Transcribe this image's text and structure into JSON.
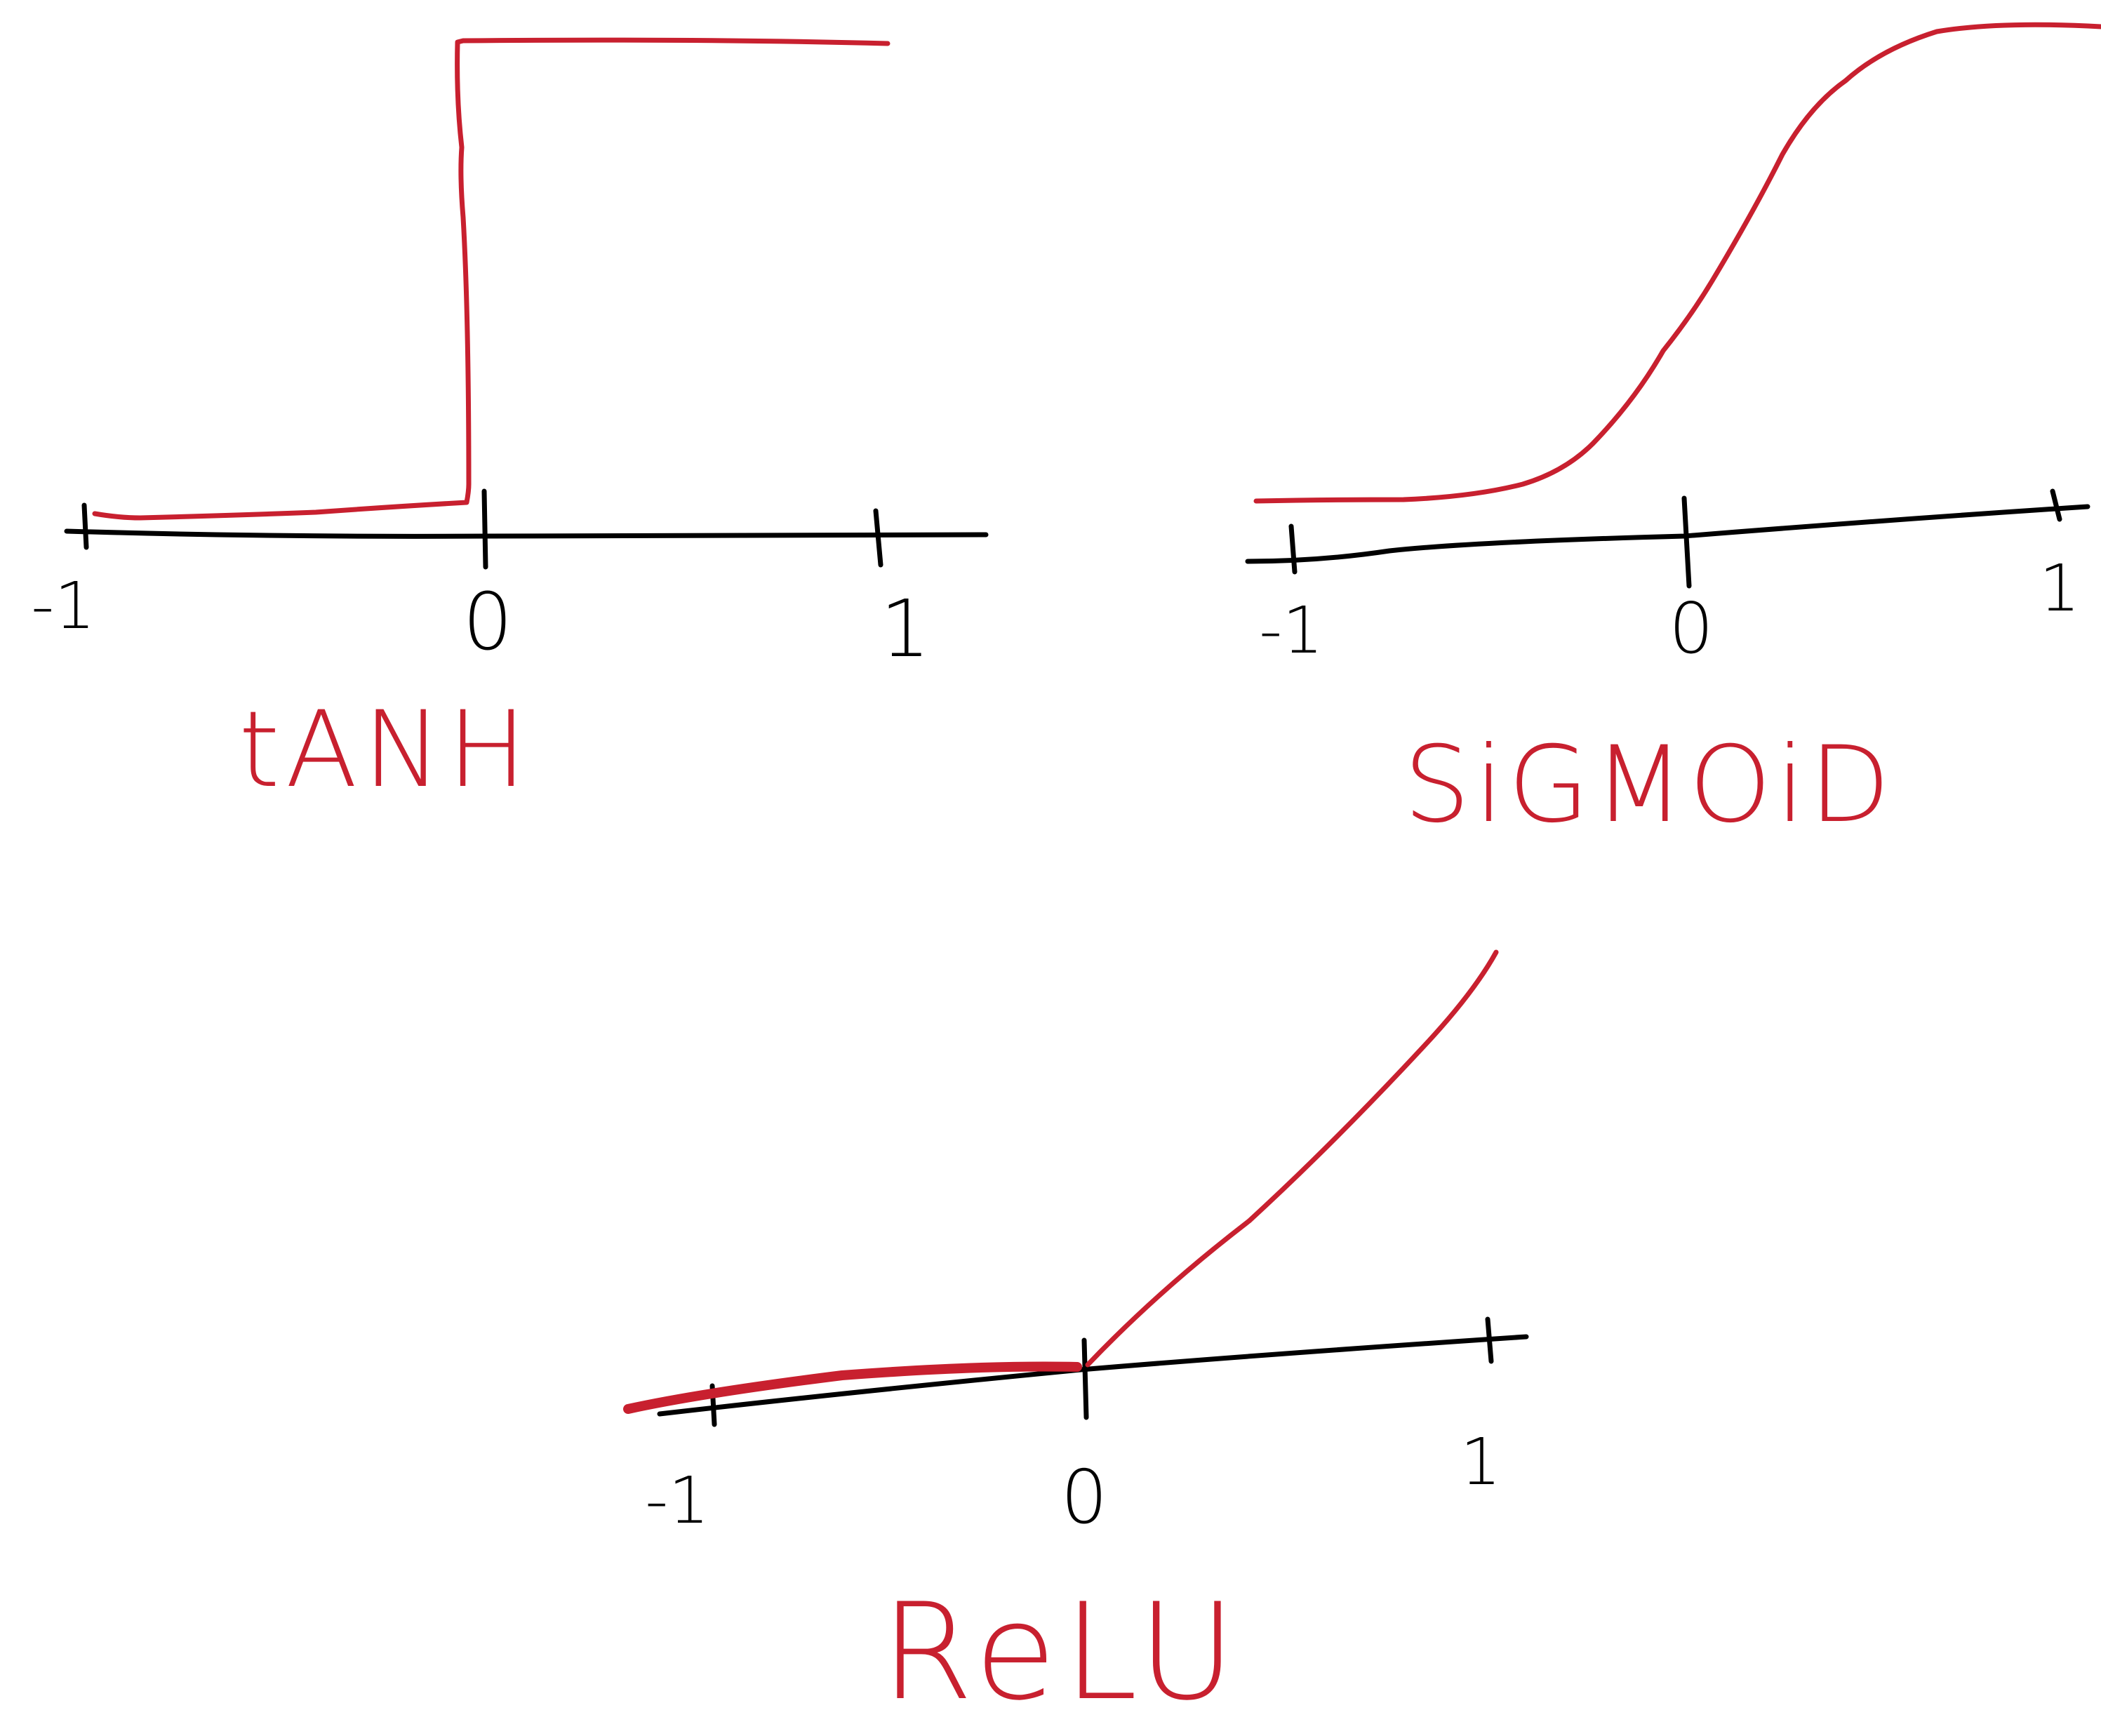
{
  "colors": {
    "axis": "#000000",
    "curve": "#c8202f",
    "background": "#ffffff"
  },
  "plots": [
    {
      "id": "tanh",
      "title": "tANH",
      "tick_labels": [
        "-1",
        "0",
        "1"
      ]
    },
    {
      "id": "sigmoid",
      "title": "SiGMOiD",
      "tick_labels": [
        "-1",
        "0",
        "1"
      ]
    },
    {
      "id": "relu",
      "title": "ReLU",
      "tick_labels": [
        "-1",
        "0",
        "1"
      ]
    }
  ],
  "chart_data": [
    {
      "type": "line",
      "title": "tANH",
      "x": [
        -1,
        0,
        0,
        1
      ],
      "y": [
        0,
        0,
        1,
        1
      ],
      "xticks": [
        -1,
        0,
        1
      ]
    },
    {
      "type": "line",
      "title": "SiGMOiD",
      "x": [
        -1,
        -0.5,
        -0.25,
        0,
        0.25,
        0.5,
        1
      ],
      "y": [
        0,
        0.02,
        0.2,
        0.55,
        0.88,
        0.98,
        1
      ],
      "xticks": [
        -1,
        0,
        1
      ]
    },
    {
      "type": "line",
      "title": "ReLU",
      "x": [
        -1,
        0,
        1
      ],
      "y": [
        0,
        0,
        1
      ],
      "xticks": [
        -1,
        0,
        1
      ]
    }
  ]
}
